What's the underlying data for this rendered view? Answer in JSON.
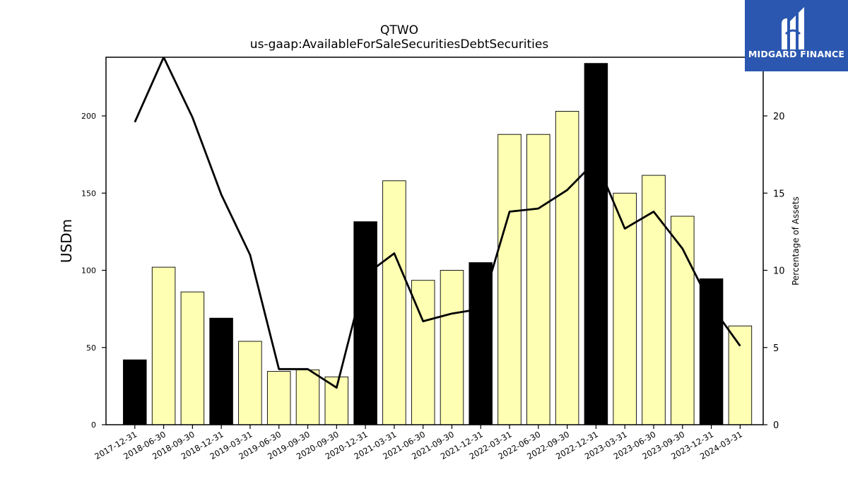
{
  "chart_data": {
    "type": "bar",
    "title": "QTWO",
    "subtitle": "us-gaap:AvailableForSaleSecuritiesDebtSecurities",
    "ylabel": "USDm",
    "y2label": "Percentage of Assets",
    "ylim": [
      0,
      238
    ],
    "y2lim": [
      0,
      23.8
    ],
    "yticks": [
      0,
      50,
      100,
      150,
      200
    ],
    "y2ticks": [
      0,
      5,
      10,
      15,
      20
    ],
    "categories": [
      "2017-12-31",
      "2018-06-30",
      "2018-09-30",
      "2018-12-31",
      "2019-03-31",
      "2019-06-30",
      "2019-09-30",
      "2020-09-30",
      "2020-12-31",
      "2021-03-31",
      "2021-06-30",
      "2021-09-30",
      "2021-12-31",
      "2022-03-31",
      "2022-06-30",
      "2022-09-30",
      "2022-12-31",
      "2023-03-31",
      "2023-06-30",
      "2023-09-30",
      "2023-12-31",
      "2024-03-31"
    ],
    "series": [
      {
        "type": "bar",
        "axis": "left",
        "values": [
          42,
          102,
          86,
          69,
          54,
          34.5,
          35.5,
          31,
          131.5,
          158,
          93.5,
          100,
          105,
          188,
          188,
          203,
          234,
          150,
          161.5,
          135,
          94.5,
          64
        ]
      },
      {
        "type": "line",
        "axis": "right",
        "values": [
          19.6,
          23.8,
          19.9,
          14.9,
          11.0,
          3.6,
          3.6,
          2.4,
          9.7,
          11.1,
          6.7,
          7.2,
          7.5,
          13.8,
          14.0,
          15.2,
          17.1,
          12.7,
          13.8,
          11.4,
          7.7,
          5.1
        ]
      }
    ],
    "bar_colors": {
      "year_end": "#000000",
      "other": "#ffffb3"
    },
    "line_color": "#000000",
    "grid": false,
    "legend": "none"
  },
  "logo": {
    "text": "MIDGARD FINANCE",
    "background": "#2b57b0",
    "icon": "midgard-logo-icon"
  }
}
